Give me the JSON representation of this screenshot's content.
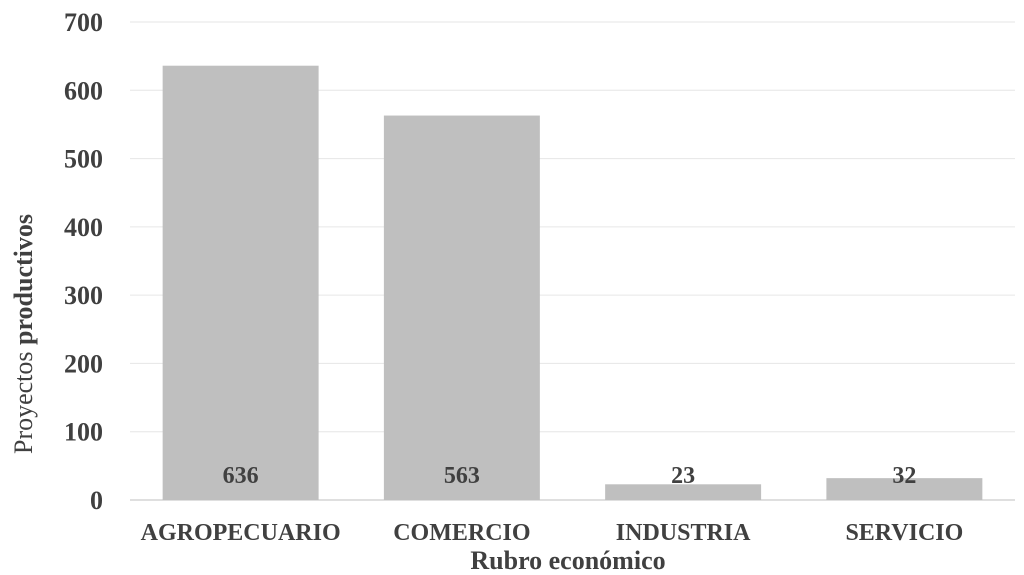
{
  "chart_data": {
    "type": "bar",
    "categories": [
      "AGROPECUARIO",
      "COMERCIO",
      "INDUSTRIA",
      "SERVICIO"
    ],
    "values": [
      636,
      563,
      23,
      32
    ],
    "data_labels": [
      "636",
      "563",
      "23",
      "32"
    ],
    "xlabel": "Rubro económico",
    "ylabel_parts": [
      "Proyectos ",
      "productivos"
    ],
    "ylim": [
      0,
      700
    ],
    "yticks": [
      0,
      100,
      200,
      300,
      400,
      500,
      600,
      700
    ],
    "grid": true,
    "bar_color": "#bfbfbf"
  }
}
